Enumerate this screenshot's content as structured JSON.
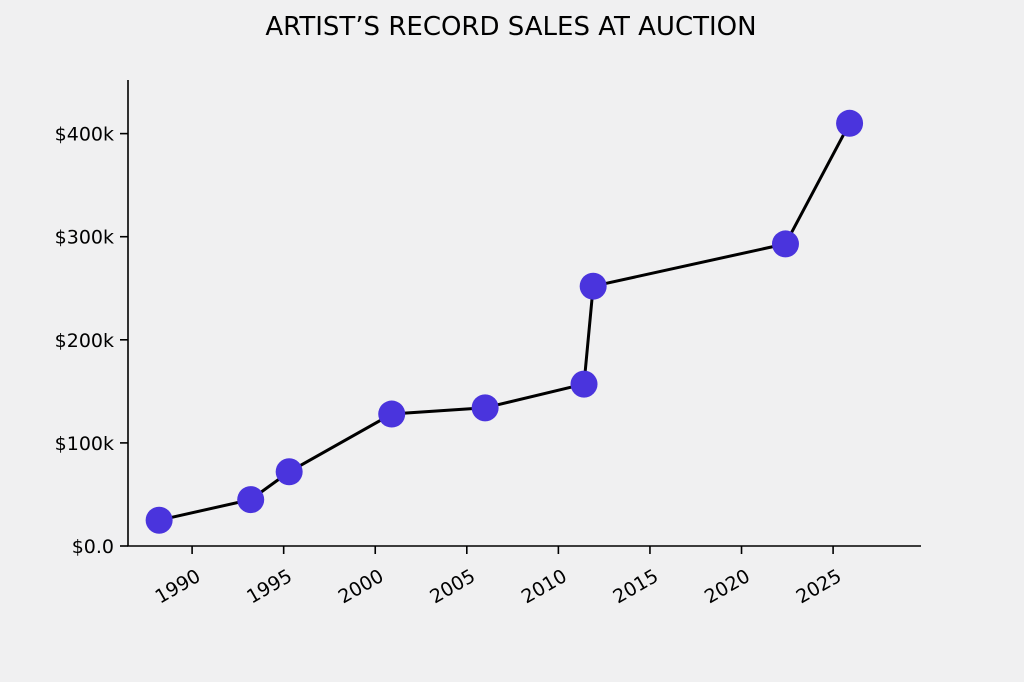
{
  "chart_data": {
    "type": "line",
    "title": "ARTIST’S RECORD SALES AT AUCTION",
    "xlabel": "",
    "ylabel": "",
    "x_ticks": [
      1990,
      1995,
      2000,
      2005,
      2010,
      2015,
      2020,
      2025
    ],
    "y_ticks": [
      {
        "value": 0,
        "label": "$0.0"
      },
      {
        "value": 100000,
        "label": "$100k"
      },
      {
        "value": 200000,
        "label": "$200k"
      },
      {
        "value": 300000,
        "label": "$300k"
      },
      {
        "value": 400000,
        "label": "$400k"
      }
    ],
    "xlim": [
      1986.5,
      2029.8
    ],
    "ylim": [
      0,
      452000
    ],
    "grid": false,
    "series": [
      {
        "color": "#4a34dd",
        "line_color": "#000000",
        "points": [
          {
            "x": 1988.2,
            "y": 25000
          },
          {
            "x": 1993.2,
            "y": 45000
          },
          {
            "x": 1995.3,
            "y": 72000
          },
          {
            "x": 2000.9,
            "y": 128000
          },
          {
            "x": 2006.0,
            "y": 134000
          },
          {
            "x": 2011.4,
            "y": 157000
          },
          {
            "x": 2011.9,
            "y": 252000
          },
          {
            "x": 2022.4,
            "y": 293000
          },
          {
            "x": 2025.9,
            "y": 410000
          }
        ]
      }
    ]
  }
}
